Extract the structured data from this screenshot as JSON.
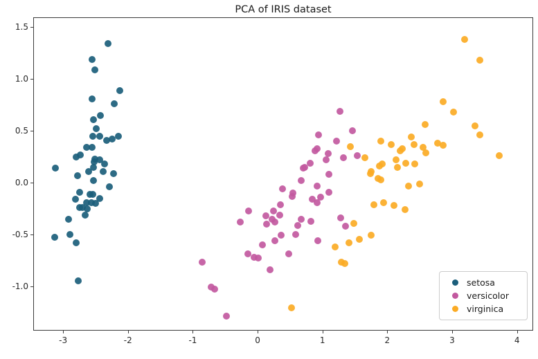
{
  "figure": {
    "background": "#ffffff",
    "spine_color": "#3a3a3a",
    "tick_label_color": "#262626"
  },
  "chart_data": {
    "type": "scatter",
    "title": "PCA of IRIS dataset",
    "xlabel": "",
    "ylabel": "",
    "xlim": [
      -3.45,
      4.26
    ],
    "ylim": [
      -1.435,
      1.59
    ],
    "grid": false,
    "legend_position": "lower right",
    "x_ticks": [
      {
        "value": -3,
        "label": "-3"
      },
      {
        "value": -2,
        "label": "-2"
      },
      {
        "value": -1,
        "label": "-1"
      },
      {
        "value": 0,
        "label": "0"
      },
      {
        "value": 1,
        "label": "1"
      },
      {
        "value": 2,
        "label": "2"
      },
      {
        "value": 3,
        "label": "3"
      },
      {
        "value": 4,
        "label": "4"
      }
    ],
    "y_ticks": [
      {
        "value": 1.5,
        "label": "1.5"
      },
      {
        "value": 1.0,
        "label": "1.0"
      },
      {
        "value": 0.5,
        "label": "0.5"
      },
      {
        "value": 0.0,
        "label": "0.0"
      },
      {
        "value": -0.5,
        "label": "-0.5"
      },
      {
        "value": -1.0,
        "label": "-1.0"
      }
    ],
    "series": [
      {
        "name": "setosa",
        "color": "#1b5e7b",
        "points": [
          [
            -2.31,
            1.34
          ],
          [
            -2.55,
            1.19
          ],
          [
            -2.51,
            1.09
          ],
          [
            -2.13,
            0.89
          ],
          [
            -2.55,
            0.81
          ],
          [
            -2.21,
            0.76
          ],
          [
            -2.43,
            0.65
          ],
          [
            -2.53,
            0.61
          ],
          [
            -2.49,
            0.52
          ],
          [
            -2.54,
            0.45
          ],
          [
            -2.44,
            0.45
          ],
          [
            -2.33,
            0.41
          ],
          [
            -2.24,
            0.42
          ],
          [
            -2.15,
            0.45
          ],
          [
            -2.64,
            0.34
          ],
          [
            -2.55,
            0.34
          ],
          [
            -2.73,
            0.27
          ],
          [
            -2.8,
            0.25
          ],
          [
            -2.51,
            0.23
          ],
          [
            -2.44,
            0.22
          ],
          [
            -3.12,
            0.14
          ],
          [
            -2.52,
            0.2
          ],
          [
            -2.61,
            0.11
          ],
          [
            -2.53,
            0.15
          ],
          [
            -2.36,
            0.18
          ],
          [
            -2.38,
            0.11
          ],
          [
            -2.22,
            0.09
          ],
          [
            -2.78,
            0.07
          ],
          [
            -2.53,
            0.02
          ],
          [
            -2.29,
            -0.04
          ],
          [
            -2.74,
            -0.09
          ],
          [
            -2.81,
            -0.16
          ],
          [
            -2.58,
            -0.11
          ],
          [
            -2.54,
            -0.11
          ],
          [
            -2.44,
            -0.15
          ],
          [
            -2.64,
            -0.19
          ],
          [
            -2.56,
            -0.19
          ],
          [
            -2.5,
            -0.2
          ],
          [
            -2.75,
            -0.24
          ],
          [
            -2.7,
            -0.24
          ],
          [
            -2.63,
            -0.25
          ],
          [
            -2.66,
            -0.31
          ],
          [
            -2.92,
            -0.35
          ],
          [
            -2.89,
            -0.5
          ],
          [
            -3.13,
            -0.53
          ],
          [
            -2.8,
            -0.58
          ],
          [
            -2.77,
            -0.95
          ]
        ]
      },
      {
        "name": "versicolor",
        "color": "#c2599f",
        "points": [
          [
            1.27,
            0.69
          ],
          [
            1.46,
            0.5
          ],
          [
            0.94,
            0.46
          ],
          [
            1.22,
            0.4
          ],
          [
            0.92,
            0.33
          ],
          [
            0.89,
            0.31
          ],
          [
            1.09,
            0.28
          ],
          [
            1.06,
            0.22
          ],
          [
            1.32,
            0.24
          ],
          [
            1.54,
            0.26
          ],
          [
            0.81,
            0.19
          ],
          [
            0.73,
            0.15
          ],
          [
            0.7,
            0.14
          ],
          [
            1.1,
            0.08
          ],
          [
            0.67,
            0.02
          ],
          [
            0.92,
            -0.03
          ],
          [
            0.38,
            -0.06
          ],
          [
            0.54,
            -0.1
          ],
          [
            1.1,
            -0.09
          ],
          [
            0.53,
            -0.13
          ],
          [
            0.97,
            -0.14
          ],
          [
            0.84,
            -0.16
          ],
          [
            0.92,
            -0.19
          ],
          [
            -0.14,
            -0.27
          ],
          [
            0.35,
            -0.21
          ],
          [
            0.24,
            -0.27
          ],
          [
            0.34,
            -0.31
          ],
          [
            0.13,
            -0.32
          ],
          [
            0.22,
            -0.35
          ],
          [
            0.14,
            -0.4
          ],
          [
            0.27,
            -0.38
          ],
          [
            -0.27,
            -0.38
          ],
          [
            0.67,
            -0.35
          ],
          [
            0.62,
            -0.41
          ],
          [
            0.82,
            -0.37
          ],
          [
            1.28,
            -0.34
          ],
          [
            1.36,
            -0.42
          ],
          [
            0.59,
            -0.5
          ],
          [
            0.36,
            -0.51
          ],
          [
            0.93,
            -0.56
          ],
          [
            0.07,
            -0.6
          ],
          [
            0.27,
            -0.56
          ],
          [
            0.48,
            -0.69
          ],
          [
            0.19,
            -0.84
          ],
          [
            -0.15,
            -0.69
          ],
          [
            -0.05,
            -0.72
          ],
          [
            0.01,
            -0.73
          ],
          [
            -0.86,
            -0.77
          ],
          [
            -0.72,
            -1.01
          ],
          [
            -0.66,
            -1.03
          ],
          [
            -0.48,
            -1.29
          ]
        ]
      },
      {
        "name": "virginica",
        "color": "#fbab25",
        "points": [
          [
            3.19,
            1.38
          ],
          [
            3.43,
            1.18
          ],
          [
            2.86,
            0.78
          ],
          [
            3.02,
            0.68
          ],
          [
            2.58,
            0.56
          ],
          [
            3.35,
            0.55
          ],
          [
            3.43,
            0.46
          ],
          [
            2.37,
            0.44
          ],
          [
            2.41,
            0.37
          ],
          [
            1.9,
            0.4
          ],
          [
            2.06,
            0.37
          ],
          [
            2.78,
            0.38
          ],
          [
            2.86,
            0.36
          ],
          [
            1.43,
            0.35
          ],
          [
            2.2,
            0.31
          ],
          [
            2.23,
            0.33
          ],
          [
            2.55,
            0.34
          ],
          [
            2.59,
            0.29
          ],
          [
            3.73,
            0.26
          ],
          [
            1.65,
            0.24
          ],
          [
            2.14,
            0.22
          ],
          [
            1.92,
            0.18
          ],
          [
            2.28,
            0.19
          ],
          [
            2.42,
            0.18
          ],
          [
            2.16,
            0.15
          ],
          [
            1.88,
            0.16
          ],
          [
            1.75,
            0.11
          ],
          [
            1.74,
            0.09
          ],
          [
            1.86,
            0.04
          ],
          [
            1.9,
            0.03
          ],
          [
            2.5,
            -0.01
          ],
          [
            2.33,
            -0.03
          ],
          [
            1.79,
            -0.21
          ],
          [
            1.94,
            -0.19
          ],
          [
            2.1,
            -0.22
          ],
          [
            2.27,
            -0.26
          ],
          [
            1.48,
            -0.39
          ],
          [
            1.75,
            -0.51
          ],
          [
            1.57,
            -0.55
          ],
          [
            1.41,
            -0.58
          ],
          [
            1.2,
            -0.62
          ],
          [
            1.29,
            -0.77
          ],
          [
            1.34,
            -0.78
          ],
          [
            0.52,
            -1.21
          ]
        ]
      }
    ]
  },
  "legend": {
    "entries": [
      {
        "label": "setosa",
        "color": "#1b5e7b"
      },
      {
        "label": "versicolor",
        "color": "#c2599f"
      },
      {
        "label": "virginica",
        "color": "#fbab25"
      }
    ]
  }
}
